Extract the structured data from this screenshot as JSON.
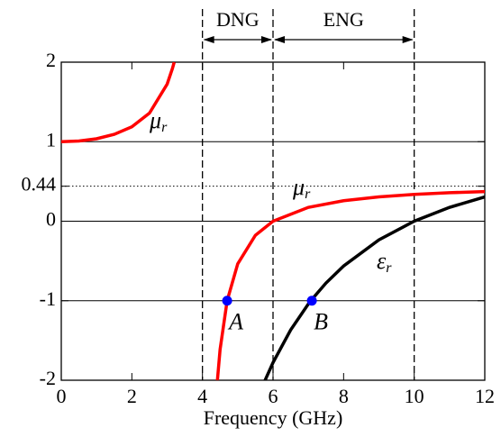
{
  "chart_data": {
    "type": "line",
    "xlabel": "Frequency (GHz)",
    "xlim": [
      0,
      12
    ],
    "xticks": [
      0,
      2,
      4,
      6,
      8,
      10,
      12
    ],
    "ylim": [
      -2,
      2
    ],
    "yticks": [
      -2,
      -1,
      0,
      0.44,
      1,
      2
    ],
    "grid": true,
    "reference_line": {
      "y": 0.44,
      "style": "dotted"
    },
    "boundaries": [
      4,
      6,
      10
    ],
    "regions": [
      {
        "label": "DNG"
      },
      {
        "label": "ENG"
      }
    ],
    "series": [
      {
        "symbol": "μ",
        "subscript": "r",
        "color": "#ff0000",
        "x": [
          0,
          0.5,
          1,
          1.5,
          2,
          2.5,
          3,
          3.15,
          3.2,
          4,
          4.42,
          4.5,
          4.7,
          5,
          5.5,
          6,
          7,
          8,
          9,
          10,
          11,
          12
        ],
        "values": [
          1,
          1.009,
          1.037,
          1.092,
          1.187,
          1.36,
          1.724,
          1.921,
          2.0,
          null,
          -2.02,
          -1.613,
          -1.0,
          -0.536,
          -0.177,
          0,
          0.174,
          0.258,
          0.306,
          0.337,
          0.358,
          0.373
        ]
      },
      {
        "symbol": "ε",
        "subscript": "r",
        "color": "#000000",
        "x": [
          5.75,
          6,
          6.5,
          7,
          7.1,
          7.5,
          8,
          9,
          10,
          11,
          12
        ],
        "values": [
          -2.025,
          -1.778,
          -1.367,
          -1.041,
          -0.984,
          -0.778,
          -0.563,
          -0.235,
          0,
          0.174,
          0.306
        ]
      }
    ],
    "points": [
      {
        "label": "A",
        "x": 4.7,
        "y": -1
      },
      {
        "label": "B",
        "x": 7.1,
        "y": -1
      }
    ],
    "point_color": "#0000ff"
  }
}
